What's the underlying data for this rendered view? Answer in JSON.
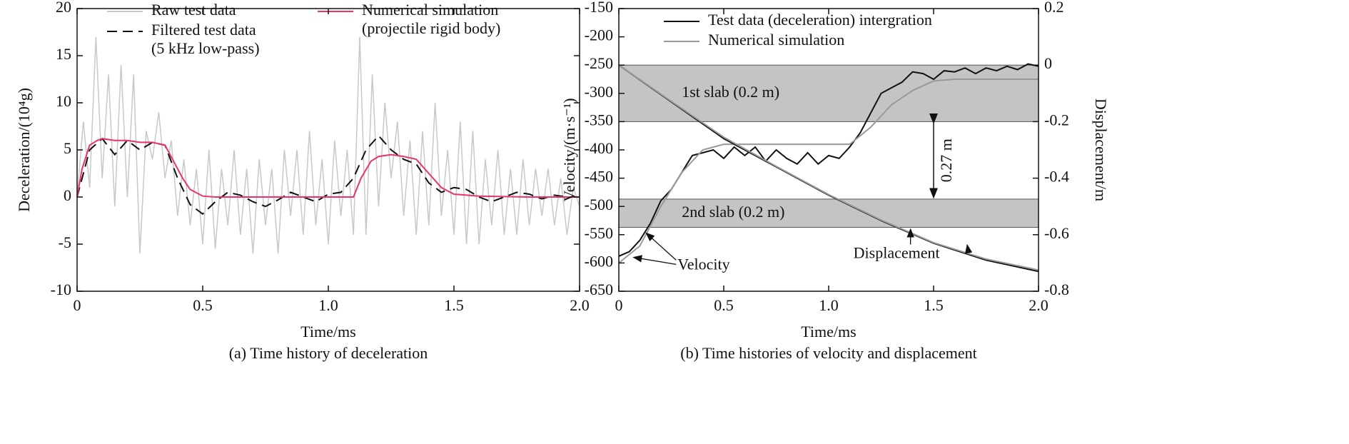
{
  "chart_data": [
    {
      "type": "line",
      "caption": "(a) Time history of deceleration",
      "x_label": "Time/ms",
      "y_label": "Deceleration/(10⁴g)",
      "xlim": [
        0,
        2
      ],
      "xticks": [
        0,
        0.5,
        {
          "value": 1,
          "label": "1.0"
        },
        1.5,
        {
          "value": 2,
          "label": "2.0"
        }
      ],
      "ylim": [
        -10,
        20
      ],
      "yticks": [
        -10,
        -5,
        0,
        5,
        10,
        15,
        20
      ],
      "series": [
        {
          "name": "Raw test data",
          "color": "#c8c8c8",
          "style": "solid",
          "x": [
            0,
            0.025,
            0.05,
            0.075,
            0.1,
            0.125,
            0.15,
            0.175,
            0.2,
            0.225,
            0.25,
            0.275,
            0.3,
            0.325,
            0.35,
            0.375,
            0.4,
            0.425,
            0.45,
            0.475,
            0.5,
            0.525,
            0.55,
            0.575,
            0.6,
            0.625,
            0.65,
            0.675,
            0.7,
            0.725,
            0.75,
            0.775,
            0.8,
            0.825,
            0.85,
            0.875,
            0.9,
            0.925,
            0.95,
            0.975,
            1.0,
            1.025,
            1.05,
            1.075,
            1.1,
            1.125,
            1.15,
            1.175,
            1.2,
            1.225,
            1.25,
            1.275,
            1.3,
            1.325,
            1.35,
            1.375,
            1.4,
            1.425,
            1.45,
            1.475,
            1.5,
            1.525,
            1.55,
            1.575,
            1.6,
            1.625,
            1.65,
            1.675,
            1.7,
            1.725,
            1.75,
            1.775,
            1.8,
            1.825,
            1.85,
            1.875,
            1.9,
            1.925,
            1.95,
            1.975,
            2.0
          ],
          "values": [
            0,
            8,
            1,
            17,
            2,
            13,
            -1,
            14,
            0,
            13,
            -6,
            7,
            4,
            9,
            2,
            6,
            -2,
            4,
            -3,
            3,
            -5,
            5,
            -5.5,
            3,
            -3,
            5,
            -4,
            3,
            -6,
            4,
            -3,
            3,
            -6,
            5,
            -2,
            5,
            -4,
            7,
            -3,
            4,
            -5,
            6,
            -2,
            5,
            -4,
            17,
            -4,
            13,
            -1,
            10,
            2,
            8,
            -2,
            6,
            -4,
            7,
            -3,
            10,
            -2,
            5,
            -4,
            8,
            -5,
            7,
            -5,
            4,
            -3,
            5,
            -4,
            3,
            -4,
            4,
            -3,
            3,
            -2,
            3,
            -3,
            2,
            -4,
            1,
            -1
          ]
        },
        {
          "name": "Filtered test data (5 kHz low-pass)",
          "color": "#111111",
          "style": "dashed",
          "x": [
            0,
            0.05,
            0.1,
            0.15,
            0.2,
            0.25,
            0.3,
            0.35,
            0.4,
            0.45,
            0.5,
            0.55,
            0.6,
            0.65,
            0.7,
            0.75,
            0.8,
            0.85,
            0.9,
            0.95,
            1.0,
            1.05,
            1.1,
            1.15,
            1.2,
            1.25,
            1.3,
            1.35,
            1.4,
            1.45,
            1.5,
            1.55,
            1.6,
            1.65,
            1.7,
            1.75,
            1.8,
            1.85,
            1.9,
            1.95,
            2.0
          ],
          "values": [
            0,
            5,
            6.2,
            4.5,
            6,
            5,
            5.8,
            5.5,
            2,
            -0.8,
            -1.8,
            -0.5,
            0.5,
            0.2,
            -0.5,
            -1,
            -0.3,
            0.5,
            0,
            -0.5,
            0.3,
            0.5,
            2,
            5,
            6.5,
            5,
            4,
            3.5,
            1.5,
            0.5,
            1,
            0.8,
            0,
            -0.5,
            0,
            0.5,
            0.3,
            -0.2,
            0.2,
            0,
            0
          ]
        },
        {
          "name": "Numerical simulation (projectile rigid body)",
          "color": "#e8336d",
          "style": "solid",
          "x": [
            0,
            0.02,
            0.05,
            0.08,
            0.1,
            0.15,
            0.2,
            0.25,
            0.3,
            0.35,
            0.38,
            0.42,
            0.45,
            0.5,
            0.55,
            1.1,
            1.13,
            1.17,
            1.2,
            1.25,
            1.3,
            1.35,
            1.4,
            1.45,
            1.5,
            1.6,
            1.8,
            2.0
          ],
          "values": [
            0,
            3,
            5.5,
            6,
            6.2,
            6,
            6,
            5.8,
            5.8,
            5.5,
            4,
            2,
            0.8,
            0.1,
            0,
            0,
            2,
            3.8,
            4.3,
            4.5,
            4.3,
            4,
            2.5,
            1,
            0.3,
            0.1,
            0,
            0
          ]
        }
      ]
    },
    {
      "type": "line",
      "caption": "(b) Time histories of velocity and displacement",
      "x_label": "Time/ms",
      "y_label": "Velocity/(m·s⁻¹)",
      "y2_label": "Displacement/m",
      "xlim": [
        0,
        2
      ],
      "xticks": [
        0,
        0.5,
        {
          "value": 1,
          "label": "1.0"
        },
        1.5,
        {
          "value": 2,
          "label": "2.0"
        }
      ],
      "ylim": [
        -650,
        -150
      ],
      "yticks": [
        -650,
        -600,
        -550,
        -500,
        -450,
        -400,
        -350,
        -300,
        -250,
        -200,
        -150
      ],
      "y2lim": [
        -0.8,
        0.2
      ],
      "y2ticks": [
        -0.8,
        -0.6,
        -0.4,
        -0.2,
        0,
        0.2
      ],
      "regions": [
        {
          "label": "1st slab (0.2 m)",
          "y2": [
            0,
            -0.2
          ]
        },
        {
          "label": "2nd slab (0.2 m)",
          "y2": [
            -0.474,
            -0.574
          ]
        }
      ],
      "series": [
        {
          "name": "Test data (deceleration) intergration",
          "color": "#111111",
          "x": [
            0,
            0.05,
            0.1,
            0.15,
            0.2,
            0.25,
            0.3,
            0.35,
            0.4,
            0.45,
            0.5,
            0.55,
            0.6,
            0.65,
            0.7,
            0.75,
            0.8,
            0.85,
            0.9,
            0.95,
            1.0,
            1.05,
            1.1,
            1.15,
            1.2,
            1.25,
            1.3,
            1.35,
            1.4,
            1.45,
            1.5,
            1.55,
            1.6,
            1.65,
            1.7,
            1.75,
            1.8,
            1.85,
            1.9,
            1.95,
            2.0
          ],
          "values": [
            -588,
            -580,
            -560,
            -530,
            -490,
            -470,
            -440,
            -410,
            -405,
            -400,
            -415,
            -395,
            -410,
            -395,
            -420,
            -400,
            -415,
            -425,
            -405,
            -425,
            -410,
            -415,
            -395,
            -370,
            -335,
            -300,
            -290,
            -280,
            -262,
            -265,
            -275,
            -260,
            -262,
            -255,
            -265,
            -255,
            -260,
            -252,
            -258,
            -248,
            -252
          ]
        },
        {
          "name": "Numerical simulation",
          "color": "#999999",
          "x": [
            0,
            0.1,
            0.2,
            0.3,
            0.4,
            0.5,
            0.6,
            0.7,
            0.8,
            0.9,
            1.0,
            1.1,
            1.2,
            1.3,
            1.4,
            1.5,
            1.6,
            2.0
          ],
          "values": [
            -600,
            -570,
            -500,
            -440,
            -400,
            -390,
            -390,
            -390,
            -390,
            -390,
            -390,
            -390,
            -360,
            -320,
            -295,
            -278,
            -275,
            -275
          ]
        },
        {
          "color": "#111111",
          "axis": "y2",
          "x": [
            0,
            0.25,
            0.5,
            0.75,
            1.0,
            1.25,
            1.5,
            1.75,
            2.0
          ],
          "values": [
            0,
            -0.13,
            -0.26,
            -0.36,
            -0.46,
            -0.55,
            -0.63,
            -0.69,
            -0.73
          ]
        },
        {
          "color": "#999999",
          "axis": "y2",
          "x": [
            0,
            0.25,
            0.5,
            0.75,
            1.0,
            1.25,
            1.5,
            1.75,
            2.0
          ],
          "values": [
            0,
            -0.128,
            -0.255,
            -0.358,
            -0.458,
            -0.548,
            -0.628,
            -0.686,
            -0.725
          ]
        }
      ],
      "annotations": [
        {
          "text": "Velocity"
        },
        {
          "text": "Displacement"
        },
        {
          "text": "0.27 m",
          "y2": [
            -0.2,
            -0.474
          ]
        }
      ]
    }
  ]
}
